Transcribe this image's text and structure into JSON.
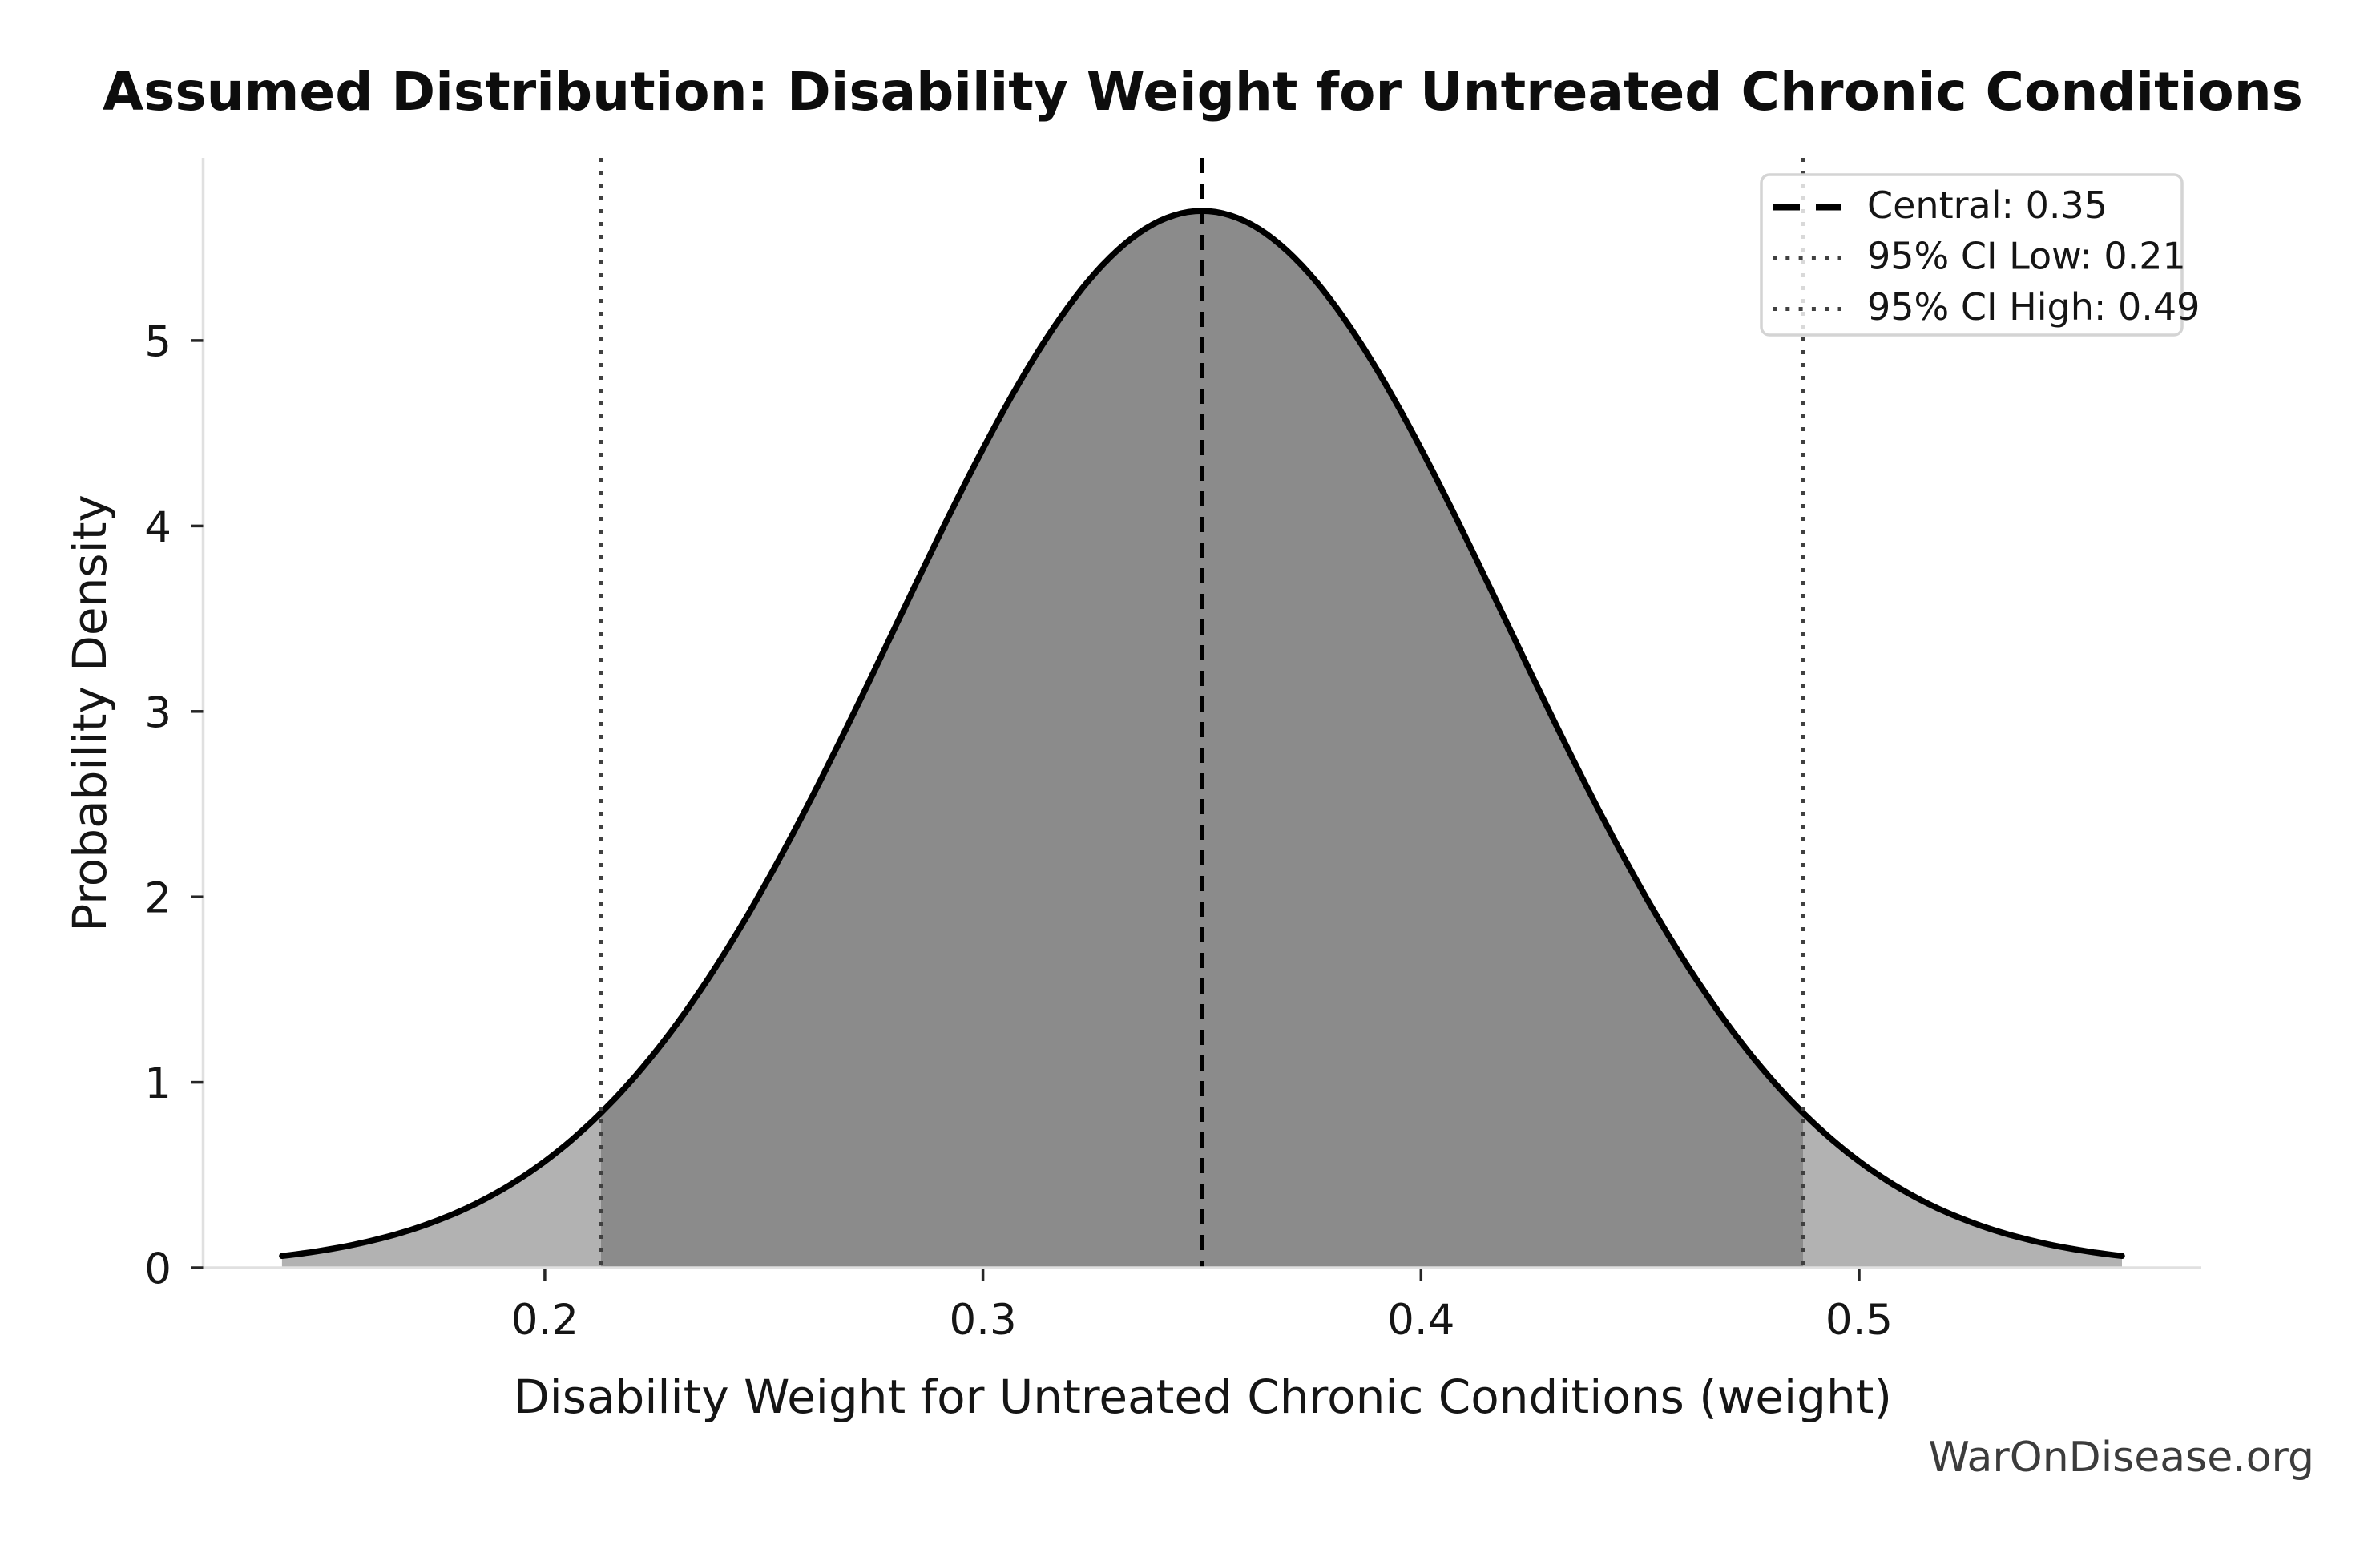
{
  "watermark": "WarOnDisease.org",
  "chart_data": {
    "type": "area",
    "subtype": "normal-distribution-pdf",
    "title": "Assumed Distribution: Disability Weight for Untreated Chronic Conditions",
    "xlabel": "Disability Weight for Untreated Chronic Conditions (weight)",
    "ylabel": "Probability Density",
    "distribution": "normal",
    "mean": 0.35,
    "sd": 0.07,
    "peak_density": 5.699,
    "central_value": 0.35,
    "ci_low_value": 0.2128,
    "ci_high_value": 0.4872,
    "ci_low_display": "0.21",
    "ci_high_display": "0.49",
    "shaded_ci_region": [
      0.2128,
      0.4872
    ],
    "curve_x_range": [
      0.14,
      0.56
    ],
    "xlim": [
      0.122,
      0.5781
    ],
    "ylim": [
      0,
      5.985
    ],
    "grid": false,
    "x_ticks": [
      {
        "value": 0.2,
        "label": "0.2"
      },
      {
        "value": 0.3,
        "label": "0.3"
      },
      {
        "value": 0.4,
        "label": "0.4"
      },
      {
        "value": 0.5,
        "label": "0.5"
      }
    ],
    "y_ticks": [
      {
        "value": 0,
        "label": "0"
      },
      {
        "value": 1,
        "label": "1"
      },
      {
        "value": 2,
        "label": "2"
      },
      {
        "value": 3,
        "label": "3"
      },
      {
        "value": 4,
        "label": "4"
      },
      {
        "value": 5,
        "label": "5"
      }
    ],
    "curve_points": {
      "x": [
        0.14,
        0.16,
        0.18,
        0.2,
        0.22,
        0.24,
        0.26,
        0.28,
        0.3,
        0.32,
        0.34,
        0.35,
        0.36,
        0.38,
        0.4,
        0.42,
        0.44,
        0.46,
        0.48,
        0.5,
        0.52,
        0.54,
        0.56
      ],
      "density": [
        0.063,
        0.143,
        0.299,
        0.574,
        1.016,
        1.658,
        2.494,
        3.457,
        4.416,
        5.199,
        5.641,
        5.699,
        5.641,
        5.199,
        4.416,
        3.457,
        2.494,
        1.658,
        1.016,
        0.574,
        0.299,
        0.143,
        0.063
      ]
    },
    "legend": {
      "position": "upper right",
      "entries": [
        {
          "label": "Central: 0.35",
          "style": "dashed",
          "color": "#000000"
        },
        {
          "label": "95% CI Low: 0.21",
          "style": "dotted",
          "color": "#404040"
        },
        {
          "label": "95% CI High: 0.49",
          "style": "dotted",
          "color": "#404040"
        }
      ]
    },
    "colors": {
      "curve": "#000000",
      "fill_central": "#8b8b8b",
      "fill_tails": "#b2b2b2",
      "central_line": "#000000",
      "ci_line": "#404040",
      "spine": "#e0e0e0",
      "tick": "#262626",
      "text": "#151515",
      "watermark": "#3c3c3c",
      "legend_border": "#d4d4d4"
    }
  }
}
